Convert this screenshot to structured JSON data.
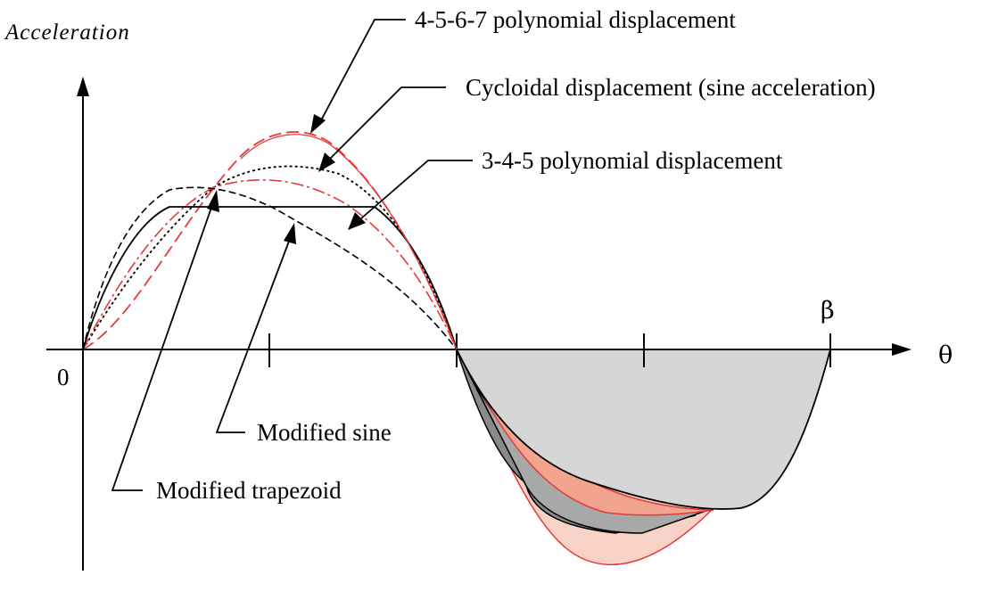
{
  "axes": {
    "y_label": "Acceleration",
    "x_label": "θ",
    "origin_label": "0",
    "end_label": "β"
  },
  "curves": [
    {
      "key": "poly4567",
      "label": "4-5-6-7 polynomial displacement",
      "color": "#e23b3b",
      "fill": "#f8d2c6",
      "line_style": "long-dash"
    },
    {
      "key": "cycloidal",
      "label": "Cycloidal displacement (sine acceleration)",
      "color": "#000000",
      "fill": "#c0c0c0",
      "line_style": "dotted"
    },
    {
      "key": "poly345",
      "label": "3-4-5 polynomial displacement",
      "color": "#e23b3b",
      "fill": "#f2a48e",
      "line_style": "dash-dot"
    },
    {
      "key": "modsine",
      "label": "Modified sine",
      "color": "#000000",
      "fill": "#8a8a8a",
      "line_style": "dash"
    },
    {
      "key": "modtrap",
      "label": "Modified trapezoid",
      "color": "#000000",
      "fill": "#d6d6d6",
      "line_style": "solid"
    }
  ],
  "colors": {
    "black": "#000000",
    "red": "#e23b3b",
    "background": "#ffffff"
  }
}
